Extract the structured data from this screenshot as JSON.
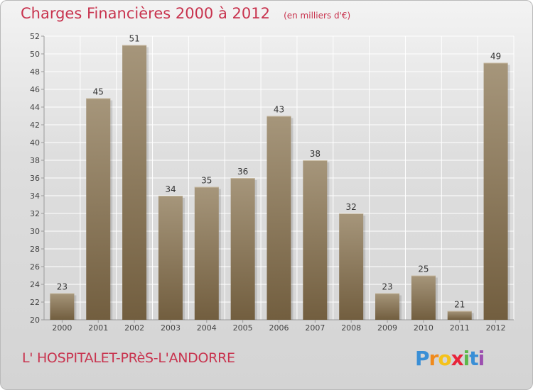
{
  "header": {
    "title": "Charges Financières 2000 à 2012",
    "subtitle": "(en milliers d'€)"
  },
  "footer": {
    "location": "L' HOSPITALET-PRèS-L'ANDORRE",
    "logo_letters": [
      "P",
      "r",
      "o",
      "x",
      "i",
      "t",
      "i"
    ],
    "logo_colors": [
      "#3a8fd6",
      "#f08a1c",
      "#f5c21a",
      "#e8243a",
      "#5cb84a",
      "#3a8fd6",
      "#9c4fb0"
    ]
  },
  "chart_data": {
    "type": "bar",
    "title": "Charges Financières 2000 à 2012",
    "subtitle": "(en milliers d'€)",
    "xlabel": "",
    "ylabel": "",
    "categories": [
      "2000",
      "2001",
      "2002",
      "2003",
      "2004",
      "2005",
      "2006",
      "2007",
      "2008",
      "2009",
      "2010",
      "2011",
      "2012"
    ],
    "values": [
      23,
      45,
      51,
      34,
      35,
      36,
      43,
      38,
      32,
      23,
      25,
      21,
      49
    ],
    "ylim": [
      20,
      52
    ],
    "yticks": [
      20,
      22,
      24,
      26,
      28,
      30,
      32,
      34,
      36,
      38,
      40,
      42,
      44,
      46,
      48,
      50,
      52
    ],
    "grid": true,
    "colors": {
      "bar_top": "#a5957a",
      "bar_bottom": "#735f40",
      "grid": "#ffffff",
      "axis": "#9a9a9a"
    }
  }
}
